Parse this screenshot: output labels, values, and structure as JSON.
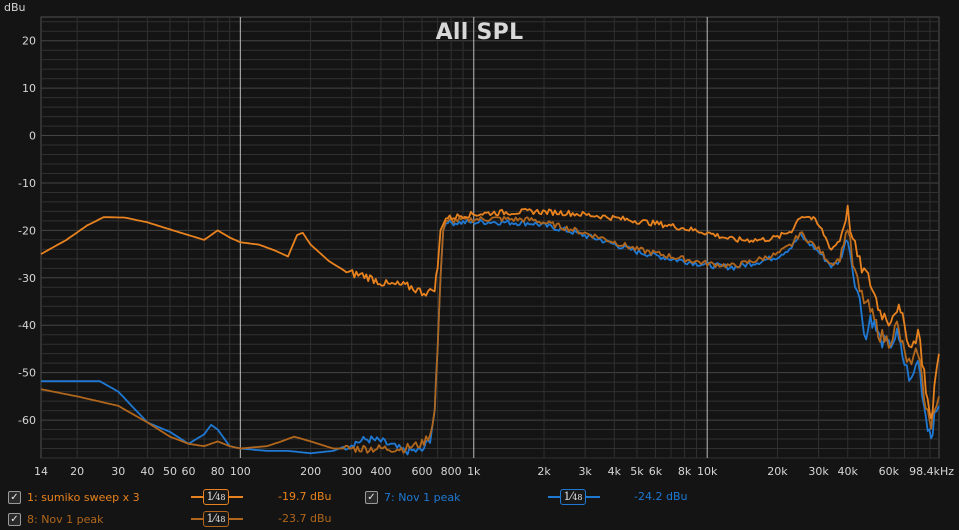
{
  "unit_label": "dBu",
  "colors": {
    "background": "#141414",
    "grid_minor": "#303030",
    "grid_major": "#444444",
    "grid_decade": "#bdbdbd",
    "tick_text": "#d6d6d6",
    "orange": "#e8821e",
    "orange_dark": "#b0661c",
    "blue": "#1f78d2"
  },
  "legend": [
    {
      "label": "1: sumiko sweep x 3",
      "checked": true,
      "color": "#e8821e",
      "smoothing": "1/48",
      "level": "-19.7 dBu"
    },
    {
      "label": "8: Nov 1 peak",
      "checked": true,
      "color": "#b0661c",
      "smoothing": "1/48",
      "level": "-23.7 dBu"
    },
    {
      "label": "7: Nov 1 peak",
      "checked": true,
      "color": "#1f78d2",
      "smoothing": "1/48",
      "level": "-24.2 dBu"
    }
  ],
  "chart_data": {
    "type": "line",
    "title": "All SPL",
    "xlabel": "",
    "ylabel": "dBu",
    "x_scale": "log",
    "xlim": [
      14,
      98400
    ],
    "ylim": [
      -68,
      25
    ],
    "x_ticks": [
      14,
      20,
      30,
      40,
      50,
      60,
      80,
      100,
      200,
      300,
      400,
      600,
      800,
      1000,
      2000,
      3000,
      4000,
      5000,
      6000,
      8000,
      10000,
      20000,
      30000,
      40000,
      60000,
      98400
    ],
    "x_tick_labels": [
      "14",
      "20",
      "30",
      "40",
      "50",
      "60",
      "80",
      "100",
      "200",
      "300",
      "400",
      "600",
      "800",
      "1k",
      "2k",
      "3k",
      "4k",
      "5k",
      "6k",
      "8k",
      "10k",
      "20k",
      "30k",
      "40k",
      "60k",
      "98.4kHz"
    ],
    "y_ticks": [
      20,
      10,
      0,
      -10,
      -20,
      -30,
      -40,
      -50,
      -60
    ],
    "y_tick_labels": [
      "20",
      "10",
      "0",
      "-10",
      "-20",
      "-30",
      "-40",
      "-50",
      "-60"
    ],
    "grid": true,
    "series": [
      {
        "name": "1: sumiko sweep x 3",
        "color": "#e8821e",
        "points": [
          [
            14,
            -25
          ],
          [
            18,
            -22
          ],
          [
            22,
            -19
          ],
          [
            26,
            -17.2
          ],
          [
            32,
            -17.3
          ],
          [
            40,
            -18.3
          ],
          [
            50,
            -19.8
          ],
          [
            60,
            -21
          ],
          [
            70,
            -22
          ],
          [
            80,
            -20
          ],
          [
            90,
            -21.5
          ],
          [
            100,
            -22.5
          ],
          [
            120,
            -23
          ],
          [
            140,
            -24.2
          ],
          [
            160,
            -25.5
          ],
          [
            175,
            -21
          ],
          [
            185,
            -20.5
          ],
          [
            200,
            -23
          ],
          [
            240,
            -26.5
          ],
          [
            290,
            -29
          ],
          [
            340,
            -29.5
          ],
          [
            380,
            -30.5
          ],
          [
            430,
            -31.5
          ],
          [
            480,
            -31.5
          ],
          [
            540,
            -32
          ],
          [
            600,
            -33
          ],
          [
            650,
            -33
          ],
          [
            680,
            -32
          ],
          [
            700,
            -28
          ],
          [
            720,
            -20
          ],
          [
            760,
            -17.5
          ],
          [
            900,
            -16.8
          ],
          [
            1200,
            -16.3
          ],
          [
            1800,
            -16
          ],
          [
            2500,
            -16.3
          ],
          [
            3500,
            -17
          ],
          [
            5000,
            -18
          ],
          [
            7000,
            -19
          ],
          [
            10000,
            -20.5
          ],
          [
            13000,
            -22
          ],
          [
            17000,
            -22
          ],
          [
            20000,
            -21.5
          ],
          [
            23000,
            -20
          ],
          [
            25000,
            -17
          ],
          [
            27000,
            -17
          ],
          [
            29000,
            -18
          ],
          [
            31000,
            -20
          ],
          [
            34000,
            -24
          ],
          [
            37000,
            -22
          ],
          [
            40000,
            -16
          ],
          [
            42000,
            -22
          ],
          [
            45000,
            -27
          ],
          [
            50000,
            -31
          ],
          [
            55000,
            -37
          ],
          [
            60000,
            -39
          ],
          [
            65000,
            -36
          ],
          [
            70000,
            -40
          ],
          [
            75000,
            -45
          ],
          [
            80000,
            -41
          ],
          [
            85000,
            -50
          ],
          [
            88000,
            -56
          ],
          [
            91000,
            -61
          ],
          [
            94000,
            -53
          ],
          [
            98400,
            -46
          ]
        ]
      },
      {
        "name": "8: Nov 1 peak",
        "color": "#b0661c",
        "points": [
          [
            14,
            -53.5
          ],
          [
            20,
            -55
          ],
          [
            30,
            -57
          ],
          [
            40,
            -60.5
          ],
          [
            50,
            -63.5
          ],
          [
            60,
            -65
          ],
          [
            70,
            -65.5
          ],
          [
            80,
            -64.5
          ],
          [
            90,
            -65.5
          ],
          [
            100,
            -66
          ],
          [
            130,
            -65.5
          ],
          [
            150,
            -64.5
          ],
          [
            170,
            -63.5
          ],
          [
            200,
            -64.5
          ],
          [
            250,
            -66
          ],
          [
            300,
            -66
          ],
          [
            400,
            -66
          ],
          [
            500,
            -66
          ],
          [
            600,
            -65
          ],
          [
            650,
            -63
          ],
          [
            680,
            -58
          ],
          [
            700,
            -45
          ],
          [
            720,
            -30
          ],
          [
            740,
            -20
          ],
          [
            760,
            -18
          ],
          [
            900,
            -17.8
          ],
          [
            1200,
            -17.5
          ],
          [
            1800,
            -17.8
          ],
          [
            2500,
            -19.5
          ],
          [
            3500,
            -21.5
          ],
          [
            5000,
            -24
          ],
          [
            7000,
            -25.5
          ],
          [
            10000,
            -27
          ],
          [
            13000,
            -27.5
          ],
          [
            17000,
            -26
          ],
          [
            20000,
            -25
          ],
          [
            23000,
            -23
          ],
          [
            25000,
            -20.5
          ],
          [
            27000,
            -22
          ],
          [
            30000,
            -24
          ],
          [
            34000,
            -27
          ],
          [
            37000,
            -26
          ],
          [
            40000,
            -19
          ],
          [
            42000,
            -27
          ],
          [
            45000,
            -33
          ],
          [
            50000,
            -37
          ],
          [
            55000,
            -42
          ],
          [
            60000,
            -43.5
          ],
          [
            65000,
            -40
          ],
          [
            70000,
            -46
          ],
          [
            75000,
            -49
          ],
          [
            80000,
            -45
          ],
          [
            85000,
            -55
          ],
          [
            88000,
            -58
          ],
          [
            91000,
            -62
          ],
          [
            94000,
            -58
          ],
          [
            98400,
            -55
          ]
        ]
      },
      {
        "name": "7: Nov 1 peak",
        "color": "#1f78d2",
        "points": [
          [
            14,
            -51.8
          ],
          [
            20,
            -51.8
          ],
          [
            25,
            -51.8
          ],
          [
            30,
            -54
          ],
          [
            35,
            -57.5
          ],
          [
            40,
            -60.5
          ],
          [
            50,
            -62.5
          ],
          [
            60,
            -65
          ],
          [
            70,
            -63
          ],
          [
            75,
            -61
          ],
          [
            80,
            -62
          ],
          [
            90,
            -65.5
          ],
          [
            100,
            -66
          ],
          [
            130,
            -66.5
          ],
          [
            160,
            -66.5
          ],
          [
            200,
            -67
          ],
          [
            250,
            -66.5
          ],
          [
            300,
            -65
          ],
          [
            350,
            -64
          ],
          [
            400,
            -64.5
          ],
          [
            450,
            -65.5
          ],
          [
            500,
            -66.5
          ],
          [
            600,
            -66.5
          ],
          [
            650,
            -64
          ],
          [
            680,
            -58
          ],
          [
            700,
            -45
          ],
          [
            720,
            -30
          ],
          [
            740,
            -20
          ],
          [
            760,
            -18.5
          ],
          [
            900,
            -18.3
          ],
          [
            1200,
            -18.2
          ],
          [
            1800,
            -18.5
          ],
          [
            2500,
            -20
          ],
          [
            3500,
            -22
          ],
          [
            5000,
            -24.5
          ],
          [
            7000,
            -26
          ],
          [
            10000,
            -27.3
          ],
          [
            13000,
            -27.8
          ],
          [
            17000,
            -26.5
          ],
          [
            20000,
            -25.5
          ],
          [
            23000,
            -23.5
          ],
          [
            25000,
            -21
          ],
          [
            27000,
            -22.5
          ],
          [
            30000,
            -24.5
          ],
          [
            34000,
            -27.5
          ],
          [
            37000,
            -26.5
          ],
          [
            40000,
            -21
          ],
          [
            42000,
            -28
          ],
          [
            45000,
            -35
          ],
          [
            48000,
            -43
          ],
          [
            50000,
            -38
          ],
          [
            55000,
            -43
          ],
          [
            60000,
            -44.5
          ],
          [
            65000,
            -42
          ],
          [
            70000,
            -48
          ],
          [
            75000,
            -52
          ],
          [
            80000,
            -47
          ],
          [
            85000,
            -57
          ],
          [
            88000,
            -61
          ],
          [
            91000,
            -63
          ],
          [
            94000,
            -60
          ],
          [
            98400,
            -57
          ]
        ]
      }
    ]
  }
}
